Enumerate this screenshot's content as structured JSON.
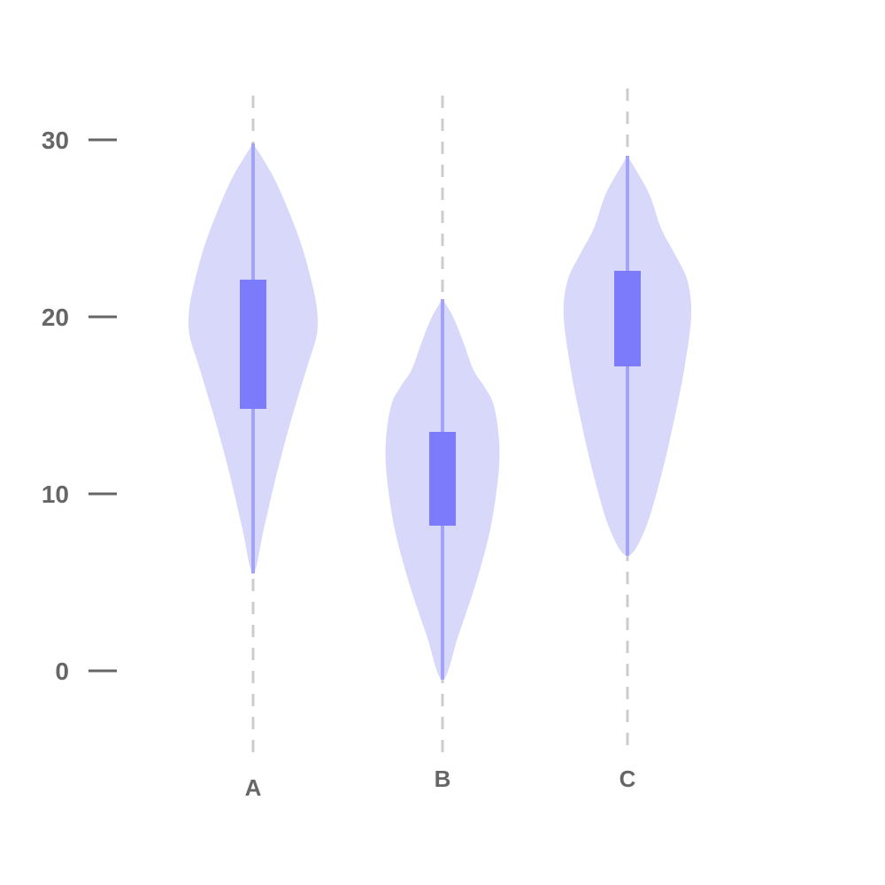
{
  "chart_data": {
    "type": "violin",
    "title": "",
    "xlabel": "",
    "ylabel": "",
    "ylim": [
      -5,
      33
    ],
    "yticks": [
      0,
      10,
      20,
      30
    ],
    "grid": false,
    "colors": {
      "violin_fill": "#d8d8fa",
      "box_fill": "#7b7bfb",
      "whisker": "#a3a3f7",
      "guide": "#cccccc",
      "axis_tick": "#666666",
      "label": "#666666"
    },
    "categories": [
      {
        "name": "A",
        "min": 5.5,
        "q1": 14.8,
        "q3": 22.1,
        "max": 29.8,
        "density": [
          [
            5.5,
            0
          ],
          [
            8,
            0.12
          ],
          [
            11,
            0.26
          ],
          [
            14,
            0.42
          ],
          [
            17,
            0.6
          ],
          [
            19,
            0.72
          ],
          [
            20.5,
            0.72
          ],
          [
            22,
            0.66
          ],
          [
            24,
            0.55
          ],
          [
            26,
            0.4
          ],
          [
            28,
            0.22
          ],
          [
            29.8,
            0
          ]
        ]
      },
      {
        "name": "B",
        "min": -0.5,
        "q1": 8.2,
        "q3": 13.5,
        "max": 21,
        "density": [
          [
            -0.5,
            0
          ],
          [
            2,
            0.18
          ],
          [
            5,
            0.38
          ],
          [
            8,
            0.54
          ],
          [
            11,
            0.63
          ],
          [
            13,
            0.64
          ],
          [
            15,
            0.58
          ],
          [
            16,
            0.48
          ],
          [
            17,
            0.35
          ],
          [
            18.5,
            0.24
          ],
          [
            20,
            0.12
          ],
          [
            21,
            0
          ]
        ]
      },
      {
        "name": "C",
        "min": 6.5,
        "q1": 17.2,
        "q3": 22.6,
        "max": 29.1,
        "density": [
          [
            6.5,
            0
          ],
          [
            8,
            0.2
          ],
          [
            11,
            0.38
          ],
          [
            14,
            0.52
          ],
          [
            17,
            0.64
          ],
          [
            20,
            0.72
          ],
          [
            22,
            0.68
          ],
          [
            23.5,
            0.54
          ],
          [
            25,
            0.38
          ],
          [
            27,
            0.24
          ],
          [
            29.1,
            0
          ]
        ]
      }
    ]
  }
}
